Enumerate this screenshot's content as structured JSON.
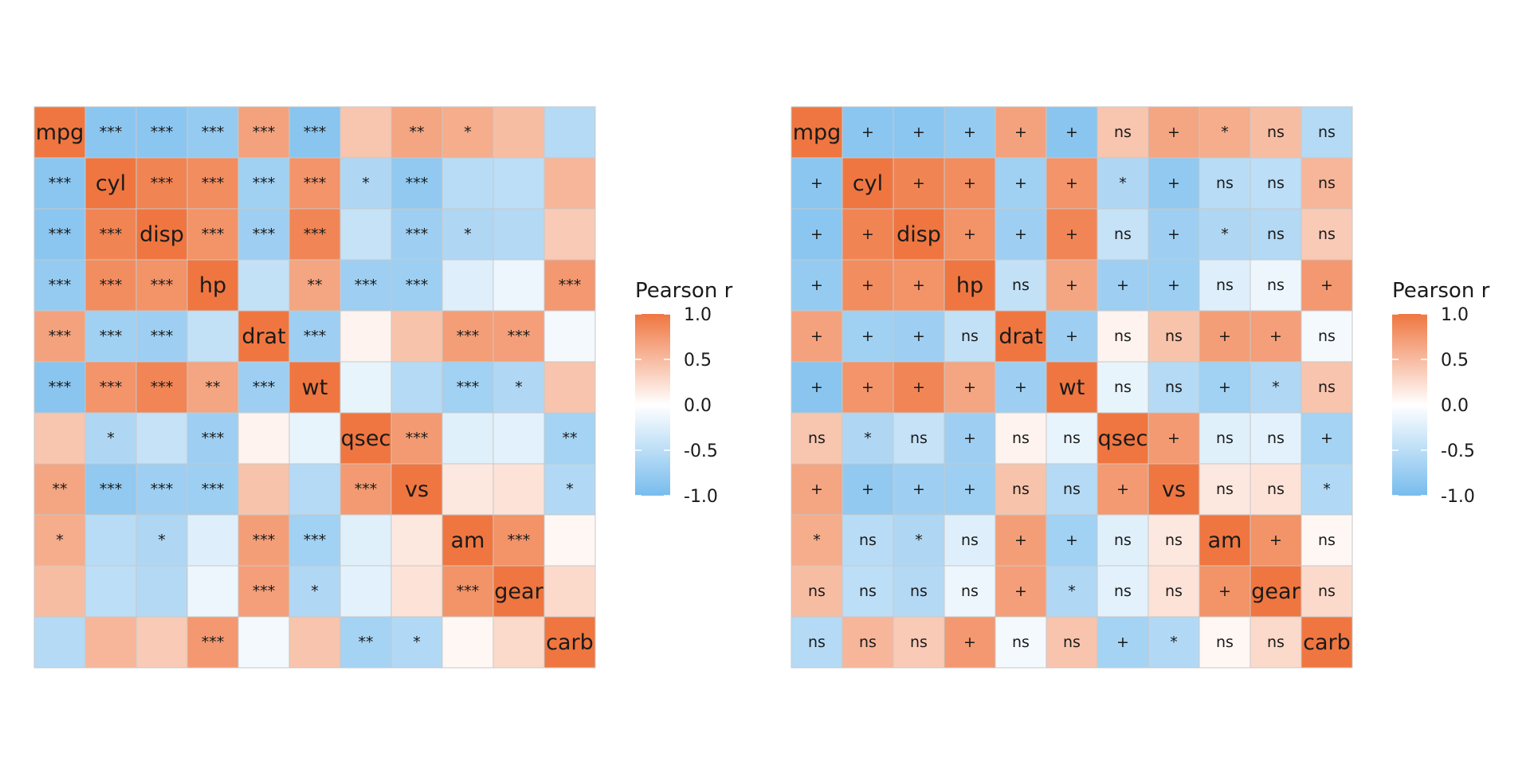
{
  "chart_data": [
    {
      "type": "heatmap",
      "legend": {
        "title": "Pearson r",
        "placement": "right",
        "range": [
          -1.0,
          1.0
        ],
        "ticks": [
          "1.0",
          "0.5",
          "0.0",
          "-0.5",
          "-1.0"
        ],
        "tick_values": [
          1.0,
          0.5,
          0.0,
          -0.5,
          -1.0
        ]
      },
      "colors": {
        "low": "#77bced",
        "mid": "#ffffff",
        "high": "#ef7640",
        "grid": "#c8c8c8"
      },
      "variables": [
        "mpg",
        "cyl",
        "disp",
        "hp",
        "drat",
        "wt",
        "qsec",
        "vs",
        "am",
        "gear",
        "carb"
      ],
      "r": [
        [
          1,
          -0.85,
          -0.85,
          -0.78,
          0.68,
          -0.87,
          0.42,
          0.66,
          0.6,
          0.48,
          -0.55
        ],
        [
          -0.85,
          1,
          0.9,
          0.83,
          -0.7,
          0.78,
          -0.59,
          -0.81,
          -0.52,
          -0.49,
          0.53
        ],
        [
          -0.85,
          0.9,
          1,
          0.79,
          -0.71,
          0.89,
          -0.43,
          -0.71,
          -0.59,
          -0.56,
          0.39
        ],
        [
          -0.78,
          0.83,
          0.79,
          1,
          -0.45,
          0.66,
          -0.71,
          -0.72,
          -0.24,
          -0.13,
          0.75
        ],
        [
          0.68,
          -0.7,
          -0.71,
          -0.45,
          1,
          -0.71,
          0.09,
          0.44,
          0.71,
          0.7,
          -0.09
        ],
        [
          -0.87,
          0.78,
          0.89,
          0.66,
          -0.71,
          1,
          -0.17,
          -0.55,
          -0.69,
          -0.58,
          0.43
        ],
        [
          0.42,
          -0.59,
          -0.43,
          -0.71,
          0.09,
          -0.17,
          1,
          0.74,
          -0.23,
          -0.21,
          -0.66
        ],
        [
          0.66,
          -0.81,
          -0.71,
          -0.72,
          0.44,
          -0.55,
          0.74,
          1,
          0.17,
          0.21,
          -0.57
        ],
        [
          0.6,
          -0.52,
          -0.59,
          -0.24,
          0.71,
          -0.69,
          -0.23,
          0.17,
          1,
          0.79,
          0.06
        ],
        [
          0.48,
          -0.49,
          -0.56,
          -0.13,
          0.7,
          -0.58,
          -0.21,
          0.21,
          0.79,
          1,
          0.27
        ],
        [
          -0.55,
          0.53,
          0.39,
          0.75,
          -0.09,
          0.43,
          -0.66,
          -0.57,
          0.06,
          0.27,
          1
        ]
      ],
      "labels": [
        [
          "mpg",
          "***",
          "***",
          "***",
          "***",
          "***",
          "",
          "**",
          "*",
          "",
          ""
        ],
        [
          "***",
          "cyl",
          "***",
          "***",
          "***",
          "***",
          "*",
          "***",
          "",
          "",
          ""
        ],
        [
          "***",
          "***",
          "disp",
          "***",
          "***",
          "***",
          "",
          "***",
          "*",
          "",
          ""
        ],
        [
          "***",
          "***",
          "***",
          "hp",
          "",
          "**",
          "***",
          "***",
          "",
          "",
          "***"
        ],
        [
          "***",
          "***",
          "***",
          "",
          "drat",
          "***",
          "",
          "",
          "***",
          "***",
          ""
        ],
        [
          "***",
          "***",
          "***",
          "**",
          "***",
          "wt",
          "",
          "",
          "***",
          "*",
          ""
        ],
        [
          "",
          "*",
          "",
          "***",
          "",
          "",
          "qsec",
          "***",
          "",
          "",
          "**"
        ],
        [
          "**",
          "***",
          "***",
          "***",
          "",
          "",
          "***",
          "vs",
          "",
          "",
          "*"
        ],
        [
          "*",
          "",
          "*",
          "",
          "***",
          "***",
          "",
          "",
          "am",
          "***",
          ""
        ],
        [
          "",
          "",
          "",
          "",
          "***",
          "*",
          "",
          "",
          "***",
          "gear",
          ""
        ],
        [
          "",
          "",
          "",
          "***",
          "",
          "",
          "**",
          "*",
          "",
          "",
          "carb"
        ]
      ]
    },
    {
      "type": "heatmap",
      "legend": {
        "title": "Pearson r",
        "placement": "right",
        "range": [
          -1.0,
          1.0
        ],
        "ticks": [
          "1.0",
          "0.5",
          "0.0",
          "-0.5",
          "-1.0"
        ],
        "tick_values": [
          1.0,
          0.5,
          0.0,
          -0.5,
          -1.0
        ]
      },
      "colors": {
        "low": "#77bced",
        "mid": "#ffffff",
        "high": "#ef7640",
        "grid": "#c8c8c8"
      },
      "variables": [
        "mpg",
        "cyl",
        "disp",
        "hp",
        "drat",
        "wt",
        "qsec",
        "vs",
        "am",
        "gear",
        "carb"
      ],
      "r": [
        [
          1,
          -0.85,
          -0.85,
          -0.78,
          0.68,
          -0.87,
          0.42,
          0.66,
          0.6,
          0.48,
          -0.55
        ],
        [
          -0.85,
          1,
          0.9,
          0.83,
          -0.7,
          0.78,
          -0.59,
          -0.81,
          -0.52,
          -0.49,
          0.53
        ],
        [
          -0.85,
          0.9,
          1,
          0.79,
          -0.71,
          0.89,
          -0.43,
          -0.71,
          -0.59,
          -0.56,
          0.39
        ],
        [
          -0.78,
          0.83,
          0.79,
          1,
          -0.45,
          0.66,
          -0.71,
          -0.72,
          -0.24,
          -0.13,
          0.75
        ],
        [
          0.68,
          -0.7,
          -0.71,
          -0.45,
          1,
          -0.71,
          0.09,
          0.44,
          0.71,
          0.7,
          -0.09
        ],
        [
          -0.87,
          0.78,
          0.89,
          0.66,
          -0.71,
          1,
          -0.17,
          -0.55,
          -0.69,
          -0.58,
          0.43
        ],
        [
          0.42,
          -0.59,
          -0.43,
          -0.71,
          0.09,
          -0.17,
          1,
          0.74,
          -0.23,
          -0.21,
          -0.66
        ],
        [
          0.66,
          -0.81,
          -0.71,
          -0.72,
          0.44,
          -0.55,
          0.74,
          1,
          0.17,
          0.21,
          -0.57
        ],
        [
          0.6,
          -0.52,
          -0.59,
          -0.24,
          0.71,
          -0.69,
          -0.23,
          0.17,
          1,
          0.79,
          0.06
        ],
        [
          0.48,
          -0.49,
          -0.56,
          -0.13,
          0.7,
          -0.58,
          -0.21,
          0.21,
          0.79,
          1,
          0.27
        ],
        [
          -0.55,
          0.53,
          0.39,
          0.75,
          -0.09,
          0.43,
          -0.66,
          -0.57,
          0.06,
          0.27,
          1
        ]
      ],
      "labels": [
        [
          "mpg",
          "+",
          "+",
          "+",
          "+",
          "+",
          "ns",
          "+",
          "*",
          "ns",
          "ns"
        ],
        [
          "+",
          "cyl",
          "+",
          "+",
          "+",
          "+",
          "*",
          "+",
          "ns",
          "ns",
          "ns"
        ],
        [
          "+",
          "+",
          "disp",
          "+",
          "+",
          "+",
          "ns",
          "+",
          "*",
          "ns",
          "ns"
        ],
        [
          "+",
          "+",
          "+",
          "hp",
          "ns",
          "+",
          "+",
          "+",
          "ns",
          "ns",
          "+"
        ],
        [
          "+",
          "+",
          "+",
          "ns",
          "drat",
          "+",
          "ns",
          "ns",
          "+",
          "+",
          "ns"
        ],
        [
          "+",
          "+",
          "+",
          "+",
          "+",
          "wt",
          "ns",
          "ns",
          "+",
          "*",
          "ns"
        ],
        [
          "ns",
          "*",
          "ns",
          "+",
          "ns",
          "ns",
          "qsec",
          "+",
          "ns",
          "ns",
          "+"
        ],
        [
          "+",
          "+",
          "+",
          "+",
          "ns",
          "ns",
          "+",
          "vs",
          "ns",
          "ns",
          "*"
        ],
        [
          "*",
          "ns",
          "*",
          "ns",
          "+",
          "+",
          "ns",
          "ns",
          "am",
          "+",
          "ns"
        ],
        [
          "ns",
          "ns",
          "ns",
          "ns",
          "+",
          "*",
          "ns",
          "ns",
          "+",
          "gear",
          "ns"
        ],
        [
          "ns",
          "ns",
          "ns",
          "+",
          "ns",
          "ns",
          "+",
          "*",
          "ns",
          "ns",
          "carb"
        ]
      ]
    }
  ]
}
